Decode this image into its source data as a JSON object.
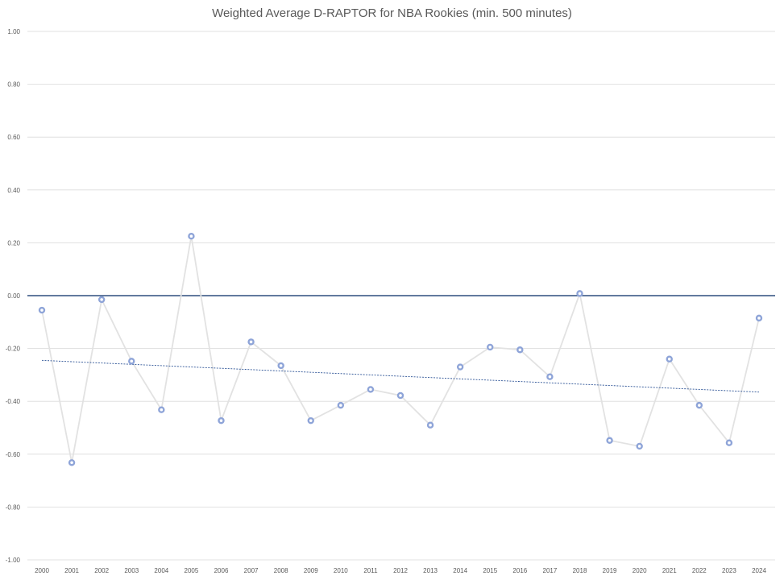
{
  "chart_data": {
    "type": "line",
    "title": "Weighted Average D-RAPTOR for NBA Rookies (min. 500 minutes)",
    "xlabel": "",
    "ylabel": "",
    "ylim": [
      -1.0,
      1.0
    ],
    "yticks": [
      "1.00",
      "0.80",
      "0.60",
      "0.40",
      "0.20",
      "0.00",
      "-0.20",
      "-0.40",
      "-0.60",
      "-0.80",
      "-1.00"
    ],
    "ytick_values": [
      1.0,
      0.8,
      0.6,
      0.4,
      0.2,
      0.0,
      -0.2,
      -0.4,
      -0.6,
      -0.8,
      -1.0
    ],
    "categories": [
      "2000",
      "2001",
      "2002",
      "2003",
      "2004",
      "2005",
      "2006",
      "2007",
      "2008",
      "2009",
      "2010",
      "2011",
      "2012",
      "2013",
      "2014",
      "2015",
      "2016",
      "2017",
      "2018",
      "2019",
      "2020",
      "2021",
      "2022",
      "2023",
      "2024"
    ],
    "series": [
      {
        "values": [
          -0.055,
          -0.632,
          -0.015,
          -0.248,
          -0.432,
          0.225,
          -0.473,
          -0.175,
          -0.265,
          -0.473,
          -0.415,
          -0.355,
          -0.378,
          -0.49,
          -0.27,
          -0.195,
          -0.205,
          -0.307,
          0.008,
          -0.548,
          -0.57,
          -0.24,
          -0.415,
          -0.557,
          -0.085
        ]
      }
    ],
    "trendline": {
      "type": "linear",
      "start": -0.245,
      "end": -0.365
    },
    "zero_line": true,
    "grid": true,
    "legend": "none",
    "colors": {
      "line": "#e2e2e2",
      "marker": "#8ea4d8",
      "trend": "#2f5597",
      "zero": "#2f4f7f",
      "grid": "#d9d9d9"
    }
  }
}
